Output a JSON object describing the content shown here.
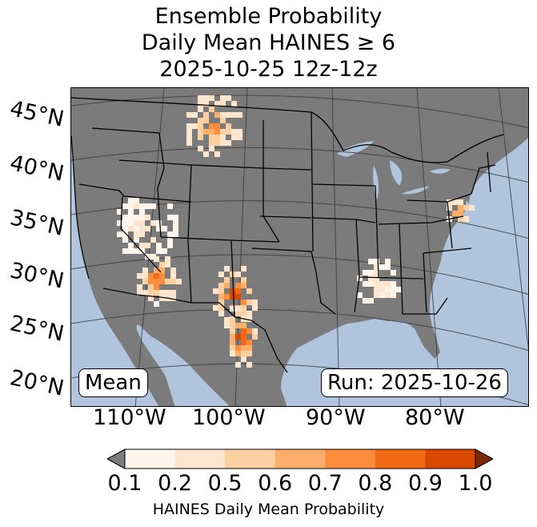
{
  "title": {
    "line1": "Ensemble Probability",
    "line2": "Daily Mean HAINES ≥ 6",
    "line3": "2025-10-25 12z-12z"
  },
  "map": {
    "lat_labels": [
      "45°N",
      "40°N",
      "35°N",
      "30°N",
      "25°N",
      "20°N"
    ],
    "lon_labels": [
      "110°W",
      "100°W",
      "90°W",
      "80°W"
    ],
    "stat_label": "Mean",
    "run_label": "Run: 2025-10-26",
    "colors": {
      "ocean": "#b0c4de",
      "land": "#7b7b7b",
      "graticule": "#3c3c3c",
      "borders": "#000000"
    },
    "probability_regions": [
      {
        "name": "Montana / northern Rockies",
        "level": 0.8
      },
      {
        "name": "Southern Arizona",
        "level": 0.9
      },
      {
        "name": "Southern New Mexico / West Texas",
        "level": 1.0
      },
      {
        "name": "Northern Mexico",
        "level": 1.0
      },
      {
        "name": "Nevada / Utah",
        "level": 0.3
      },
      {
        "name": "Southeast US (Alabama/Georgia)",
        "level": 0.3
      },
      {
        "name": "Mid-Atlantic (Virginia/Maryland)",
        "level": 0.8
      }
    ]
  },
  "colorbar": {
    "label": "HAINES Daily Mean Probability",
    "ticks": [
      "0.1",
      "0.2",
      "0.5",
      "0.6",
      "0.7",
      "0.8",
      "0.9",
      "1.0"
    ],
    "under_color": "#7b7b7b",
    "over_color": "#7f2704",
    "colors": [
      "#fff5eb",
      "#fee6ce",
      "#fdd0a2",
      "#fdae6b",
      "#fd8d3c",
      "#f16913",
      "#d94801"
    ]
  }
}
